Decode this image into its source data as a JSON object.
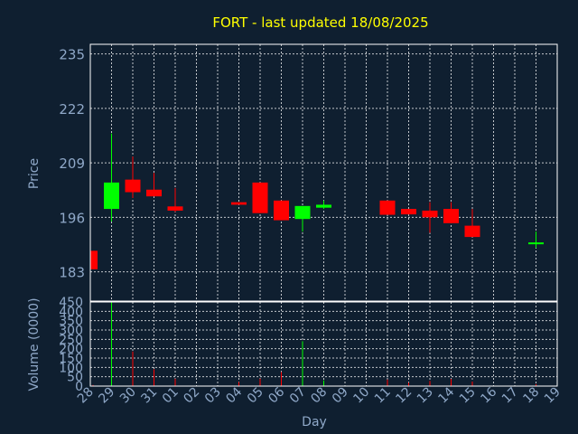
{
  "chart_data": {
    "type": "candlestick",
    "title": "FORT - last updated 18/08/2025",
    "xlabel": "Day",
    "price_ylabel": "Price",
    "volume_ylabel": "Volume (0000)",
    "x_ticks": [
      "28",
      "29",
      "30",
      "31",
      "01",
      "02",
      "03",
      "04",
      "05",
      "06",
      "07",
      "08",
      "09",
      "10",
      "11",
      "12",
      "13",
      "14",
      "15",
      "16",
      "17",
      "18",
      "19"
    ],
    "price_ylim": [
      176,
      237.3
    ],
    "price_yticks": [
      "235",
      "222",
      "209",
      "196",
      "183"
    ],
    "price_ytick_values": [
      235,
      222,
      209,
      196,
      183
    ],
    "volume_ylim": [
      0,
      450
    ],
    "volume_yticks": [
      "450",
      "400",
      "350",
      "300",
      "250",
      "200",
      "150",
      "100",
      "50",
      "0"
    ],
    "volume_ytick_values": [
      450,
      400,
      350,
      300,
      250,
      200,
      150,
      100,
      50,
      0
    ],
    "grid": true,
    "colors": {
      "background": "#0f1f30",
      "title": "#ffff00",
      "axis_text": "#8fa8c8",
      "frame": "#ffffff",
      "up": "#00ff00",
      "down": "#ff0000"
    },
    "candles": [
      {
        "day": "28",
        "open": 188.0,
        "high": 188.0,
        "low": 183.6,
        "close": 183.6
      },
      {
        "day": "29",
        "open": 198.0,
        "high": 216.0,
        "low": 195.0,
        "close": 204.3
      },
      {
        "day": "30",
        "open": 205.0,
        "high": 210.5,
        "low": 200.6,
        "close": 202.0
      },
      {
        "day": "31",
        "open": 202.6,
        "high": 206.6,
        "low": 201.0,
        "close": 201.0
      },
      {
        "day": "01",
        "open": 198.6,
        "high": 203.0,
        "low": 197.3,
        "close": 197.6
      },
      {
        "day": "04",
        "open": 199.6,
        "high": 199.6,
        "low": 199.0,
        "close": 199.0
      },
      {
        "day": "05",
        "open": 204.3,
        "high": 204.3,
        "low": 197.0,
        "close": 197.0
      },
      {
        "day": "06",
        "open": 200.0,
        "high": 200.0,
        "low": 195.3,
        "close": 195.3
      },
      {
        "day": "07",
        "open": 195.6,
        "high": 198.7,
        "low": 192.6,
        "close": 198.7
      },
      {
        "day": "08",
        "open": 198.3,
        "high": 200.0,
        "low": 198.0,
        "close": 199.0
      },
      {
        "day": "11",
        "open": 200.0,
        "high": 200.0,
        "low": 196.6,
        "close": 196.6
      },
      {
        "day": "12",
        "open": 198.0,
        "high": 198.0,
        "low": 196.7,
        "close": 196.7
      },
      {
        "day": "13",
        "open": 197.6,
        "high": 199.6,
        "low": 192.3,
        "close": 196.0
      },
      {
        "day": "14",
        "open": 198.0,
        "high": 199.6,
        "low": 194.6,
        "close": 194.6
      },
      {
        "day": "15",
        "open": 194.0,
        "high": 198.0,
        "low": 191.3,
        "close": 191.3
      },
      {
        "day": "18",
        "open": 190.0,
        "high": 192.6,
        "low": 188.7,
        "close": 190.0
      }
    ],
    "volume": [
      {
        "day": "28",
        "value": 6,
        "color": "down"
      },
      {
        "day": "29",
        "value": 450,
        "color": "up"
      },
      {
        "day": "30",
        "value": 185,
        "color": "down"
      },
      {
        "day": "31",
        "value": 90,
        "color": "down"
      },
      {
        "day": "01",
        "value": 40,
        "color": "down"
      },
      {
        "day": "04",
        "value": 22,
        "color": "down"
      },
      {
        "day": "05",
        "value": 40,
        "color": "down"
      },
      {
        "day": "06",
        "value": 75,
        "color": "down"
      },
      {
        "day": "07",
        "value": 240,
        "color": "up"
      },
      {
        "day": "08",
        "value": 30,
        "color": "up"
      },
      {
        "day": "11",
        "value": 35,
        "color": "down"
      },
      {
        "day": "12",
        "value": 18,
        "color": "down"
      },
      {
        "day": "13",
        "value": 28,
        "color": "down"
      },
      {
        "day": "14",
        "value": 38,
        "color": "down"
      },
      {
        "day": "15",
        "value": 24,
        "color": "down"
      },
      {
        "day": "18",
        "value": 10,
        "color": "down"
      }
    ]
  }
}
